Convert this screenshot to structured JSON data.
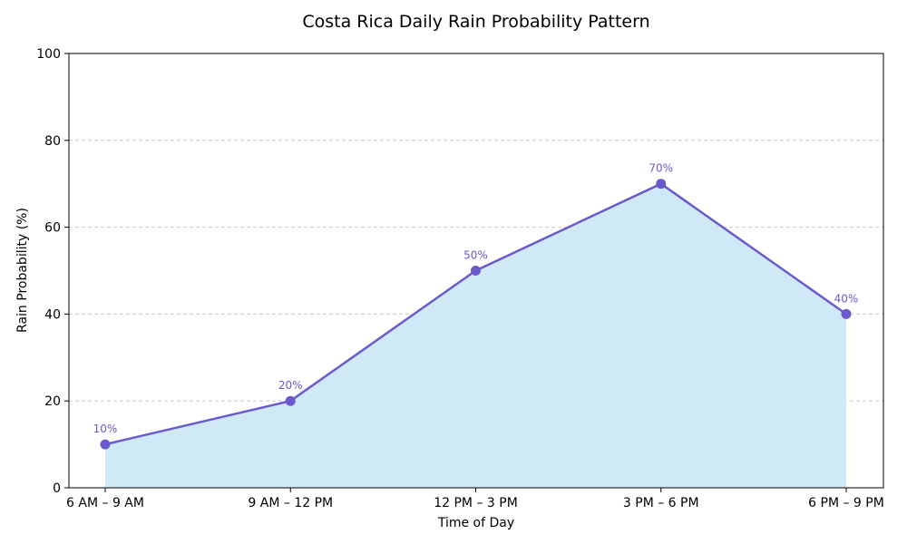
{
  "chart_data": {
    "type": "area",
    "title": "Costa Rica Daily Rain Probability Pattern",
    "xlabel": "Time of Day",
    "ylabel": "Rain Probability (%)",
    "categories": [
      "6 AM – 9 AM",
      "9 AM – 12 PM",
      "12 PM – 3 PM",
      "3 PM – 6 PM",
      "6 PM – 9 PM"
    ],
    "values": [
      10,
      20,
      50,
      70,
      40
    ],
    "data_labels": [
      "10%",
      "20%",
      "50%",
      "70%",
      "40%"
    ],
    "ylim": [
      0,
      100
    ],
    "yticks": [
      "0",
      "20",
      "40",
      "60",
      "80",
      "100"
    ],
    "grid": "horizontal dashed",
    "colors": {
      "line": "#6a5acd",
      "fill": "#cfeaf6",
      "label": "#6a5acd"
    }
  }
}
